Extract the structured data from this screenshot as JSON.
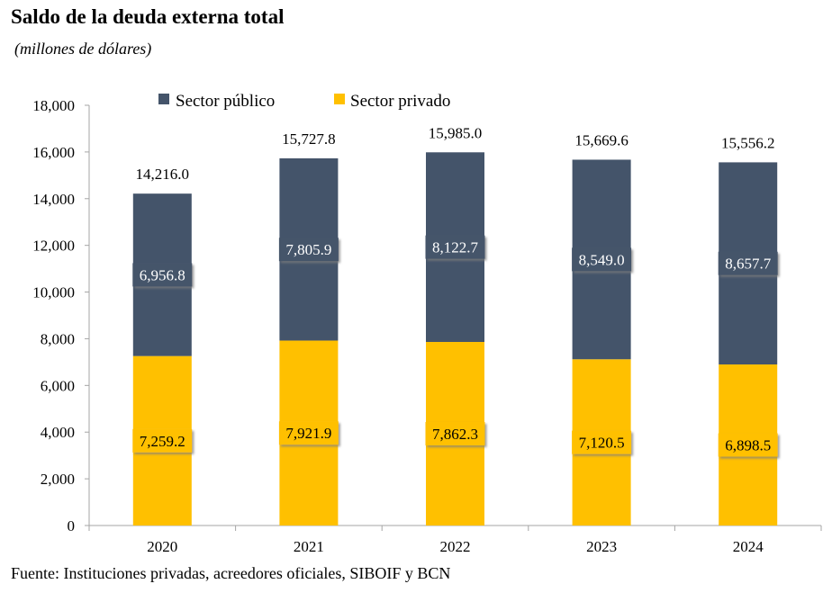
{
  "title": "Saldo de la deuda externa total",
  "subtitle": "(millones de dólares)",
  "source": "Fuente: Instituciones privadas, acreedores oficiales, SIBOIF y BCN",
  "colors": {
    "publico": "#44546a",
    "privado": "#ffc000",
    "axis": "#a6a6a6",
    "shadow": "#a0a0a0"
  },
  "chart_data": {
    "type": "bar",
    "stacked": true,
    "categories": [
      "2020",
      "2021",
      "2022",
      "2023",
      "2024"
    ],
    "series": [
      {
        "name": "Sector público",
        "values": [
          6956.8,
          7805.9,
          8122.7,
          8549.0,
          8657.7
        ],
        "labels": [
          "6,956.8",
          "7,805.9",
          "8,122.7",
          "8,549.0",
          "8,657.7"
        ]
      },
      {
        "name": "Sector privado",
        "values": [
          7259.2,
          7921.9,
          7862.3,
          7120.5,
          6898.5
        ],
        "labels": [
          "7,259.2",
          "7,921.9",
          "7,862.3",
          "7,120.5",
          "6,898.5"
        ]
      }
    ],
    "totals": [
      14216.0,
      15727.8,
      15985.0,
      15669.6,
      15556.2
    ],
    "total_labels": [
      "14,216.0",
      "15,727.8",
      "15,985.0",
      "15,669.6",
      "15,556.2"
    ],
    "ylim": [
      0,
      18000
    ],
    "yticks": [
      0,
      2000,
      4000,
      6000,
      8000,
      10000,
      12000,
      14000,
      16000,
      18000
    ],
    "ytick_labels": [
      "0",
      "2,000",
      "4,000",
      "6,000",
      "8,000",
      "10,000",
      "12,000",
      "14,000",
      "16,000",
      "18,000"
    ],
    "xlabel": "",
    "ylabel": "",
    "legend_position": "top",
    "grid": false
  }
}
